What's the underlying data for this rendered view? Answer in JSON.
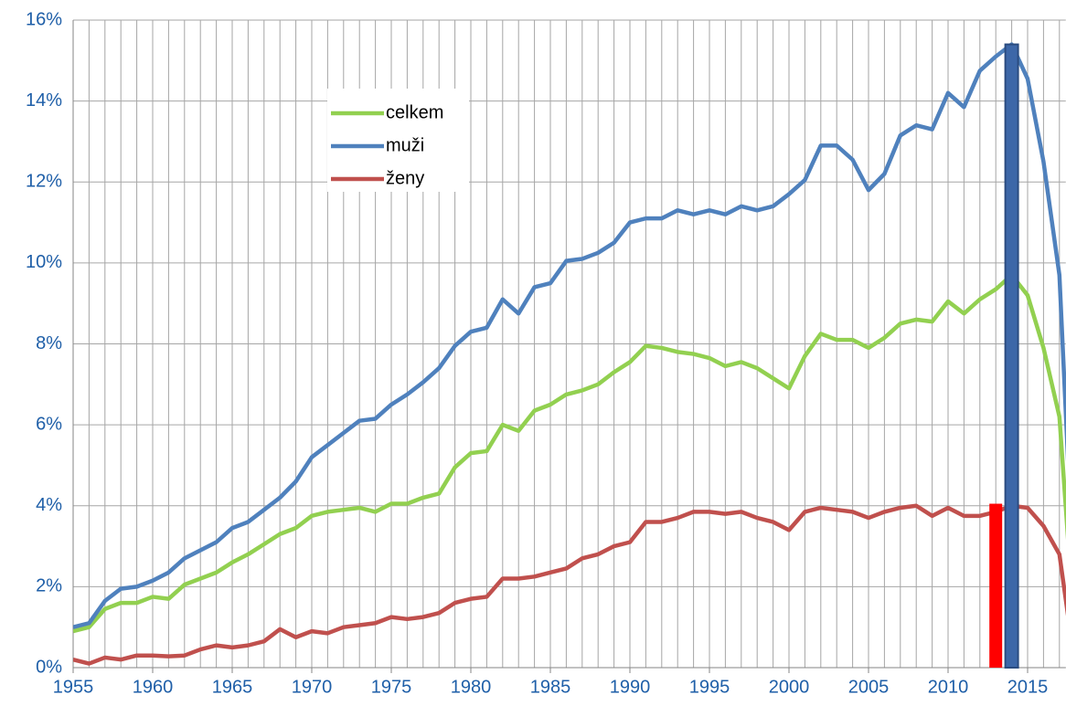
{
  "chart_data": {
    "type": "line",
    "x": [
      1955,
      1956,
      1957,
      1958,
      1959,
      1960,
      1961,
      1962,
      1963,
      1964,
      1965,
      1966,
      1967,
      1968,
      1969,
      1970,
      1971,
      1972,
      1973,
      1974,
      1975,
      1976,
      1977,
      1978,
      1979,
      1980,
      1981,
      1982,
      1983,
      1984,
      1985,
      1986,
      1987,
      1988,
      1989,
      1990,
      1991,
      1992,
      1993,
      1994,
      1995,
      1996,
      1997,
      1998,
      1999,
      2000,
      2001,
      2002,
      2003,
      2004,
      2005,
      2006,
      2007,
      2008,
      2009,
      2010,
      2011,
      2012,
      2013,
      2014,
      2015,
      2016,
      2017,
      2018
    ],
    "series": [
      {
        "name": "celkem",
        "color": "#92d050",
        "values": [
          0.9,
          1.0,
          1.45,
          1.6,
          1.6,
          1.75,
          1.7,
          2.05,
          2.2,
          2.35,
          2.6,
          2.8,
          3.05,
          3.3,
          3.45,
          3.75,
          3.85,
          3.9,
          3.95,
          3.85,
          4.05,
          4.05,
          4.2,
          4.3,
          4.95,
          5.3,
          5.35,
          6.0,
          5.85,
          6.35,
          6.5,
          6.75,
          6.85,
          7.0,
          7.3,
          7.55,
          7.95,
          7.9,
          7.8,
          7.75,
          7.65,
          7.45,
          7.55,
          7.4,
          7.15,
          6.9,
          7.7,
          8.25,
          8.1,
          8.1,
          7.9,
          8.15,
          8.5,
          8.6,
          8.55,
          9.05,
          8.75,
          9.1,
          9.35,
          9.7,
          9.2,
          7.9,
          6.2,
          0.6
        ]
      },
      {
        "name": "muži",
        "color": "#4f81bd",
        "values": [
          1.0,
          1.1,
          1.65,
          1.95,
          2.0,
          2.15,
          2.35,
          2.7,
          2.9,
          3.1,
          3.45,
          3.6,
          3.9,
          4.2,
          4.6,
          5.2,
          5.5,
          5.8,
          6.1,
          6.15,
          6.5,
          6.75,
          7.05,
          7.4,
          7.95,
          8.3,
          8.4,
          9.1,
          8.75,
          9.4,
          9.5,
          10.05,
          10.1,
          10.25,
          10.5,
          11.0,
          11.1,
          11.1,
          11.3,
          11.2,
          11.3,
          11.2,
          11.4,
          11.3,
          11.4,
          11.7,
          12.05,
          12.9,
          12.9,
          12.55,
          11.8,
          12.2,
          13.15,
          13.4,
          13.3,
          14.2,
          13.85,
          14.75,
          15.1,
          15.4,
          14.55,
          12.5,
          9.7,
          1.2
        ]
      },
      {
        "name": "ženy",
        "color": "#c0504d",
        "values": [
          0.2,
          0.1,
          0.25,
          0.2,
          0.3,
          0.3,
          0.28,
          0.3,
          0.45,
          0.55,
          0.5,
          0.55,
          0.65,
          0.95,
          0.75,
          0.9,
          0.85,
          1.0,
          1.05,
          1.1,
          1.25,
          1.2,
          1.25,
          1.35,
          1.6,
          1.7,
          1.75,
          2.2,
          2.2,
          2.25,
          2.35,
          2.45,
          2.7,
          2.8,
          3.0,
          3.1,
          3.6,
          3.6,
          3.7,
          3.85,
          3.85,
          3.8,
          3.85,
          3.7,
          3.6,
          3.4,
          3.85,
          3.95,
          3.9,
          3.85,
          3.7,
          3.85,
          3.95,
          4.0,
          3.75,
          3.95,
          3.75,
          3.75,
          3.85,
          4.0,
          3.95,
          3.5,
          2.8,
          0.0
        ]
      }
    ],
    "bars": [
      {
        "x": 2013,
        "value": 4.05,
        "color": "#ff0000"
      },
      {
        "x": 2014,
        "value": 15.4,
        "color": "#3d67a8"
      }
    ],
    "xlim": [
      1955,
      2017.4
    ],
    "ylim": [
      0,
      16
    ],
    "xticks": [
      1955,
      1960,
      1965,
      1970,
      1975,
      1980,
      1985,
      1990,
      1995,
      2000,
      2005,
      2010,
      2015
    ],
    "yticks": [
      {
        "value": 0,
        "label": "0%"
      },
      {
        "value": 2,
        "label": "2%"
      },
      {
        "value": 4,
        "label": "4%"
      },
      {
        "value": 6,
        "label": "6%"
      },
      {
        "value": 8,
        "label": "8%"
      },
      {
        "value": 10,
        "label": "10%"
      },
      {
        "value": 12,
        "label": "12%"
      },
      {
        "value": 14,
        "label": "14%"
      },
      {
        "value": 16,
        "label": "16%"
      }
    ],
    "grid": true
  }
}
